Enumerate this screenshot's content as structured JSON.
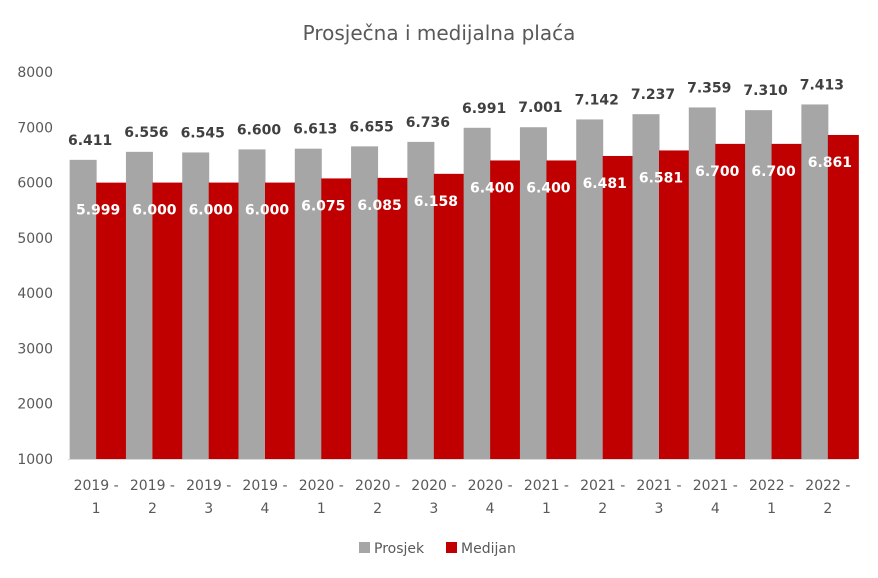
{
  "chart_data": {
    "type": "bar",
    "title": "Prosječna i medijalna plaća",
    "categories": [
      [
        "2019 -",
        "1"
      ],
      [
        "2019 -",
        "2"
      ],
      [
        "2019 -",
        "3"
      ],
      [
        "2019 -",
        "4"
      ],
      [
        "2020 -",
        "1"
      ],
      [
        "2020 -",
        "2"
      ],
      [
        "2020 -",
        "3"
      ],
      [
        "2020 -",
        "4"
      ],
      [
        "2021 -",
        "1"
      ],
      [
        "2021 -",
        "2"
      ],
      [
        "2021 -",
        "3"
      ],
      [
        "2021 -",
        "4"
      ],
      [
        "2022 -",
        "1"
      ],
      [
        "2022 -",
        "2"
      ]
    ],
    "series": [
      {
        "name": "Prosjek",
        "color": "#a6a6a6",
        "values": [
          6411,
          6556,
          6545,
          6600,
          6613,
          6655,
          6736,
          6991,
          7001,
          7142,
          7237,
          7359,
          7310,
          7413
        ],
        "labels": [
          "6.411",
          "6.556",
          "6.545",
          "6.600",
          "6.613",
          "6.655",
          "6.736",
          "6.991",
          "7.001",
          "7.142",
          "7.237",
          "7.359",
          "7.310",
          "7.413"
        ]
      },
      {
        "name": "Medijan",
        "color": "#c00000",
        "values": [
          5999,
          6000,
          6000,
          6000,
          6075,
          6085,
          6158,
          6400,
          6400,
          6481,
          6581,
          6700,
          6700,
          6861
        ],
        "labels": [
          "5.999",
          "6.000",
          "6.000",
          "6.000",
          "6.075",
          "6.085",
          "6.158",
          "6.400",
          "6.400",
          "6.481",
          "6.581",
          "6.700",
          "6.700",
          "6.861"
        ]
      }
    ],
    "ylim": [
      1000,
      8000
    ],
    "yticks": [
      1000,
      2000,
      3000,
      4000,
      5000,
      6000,
      7000,
      8000
    ],
    "grid": false,
    "legend": "bottom"
  }
}
